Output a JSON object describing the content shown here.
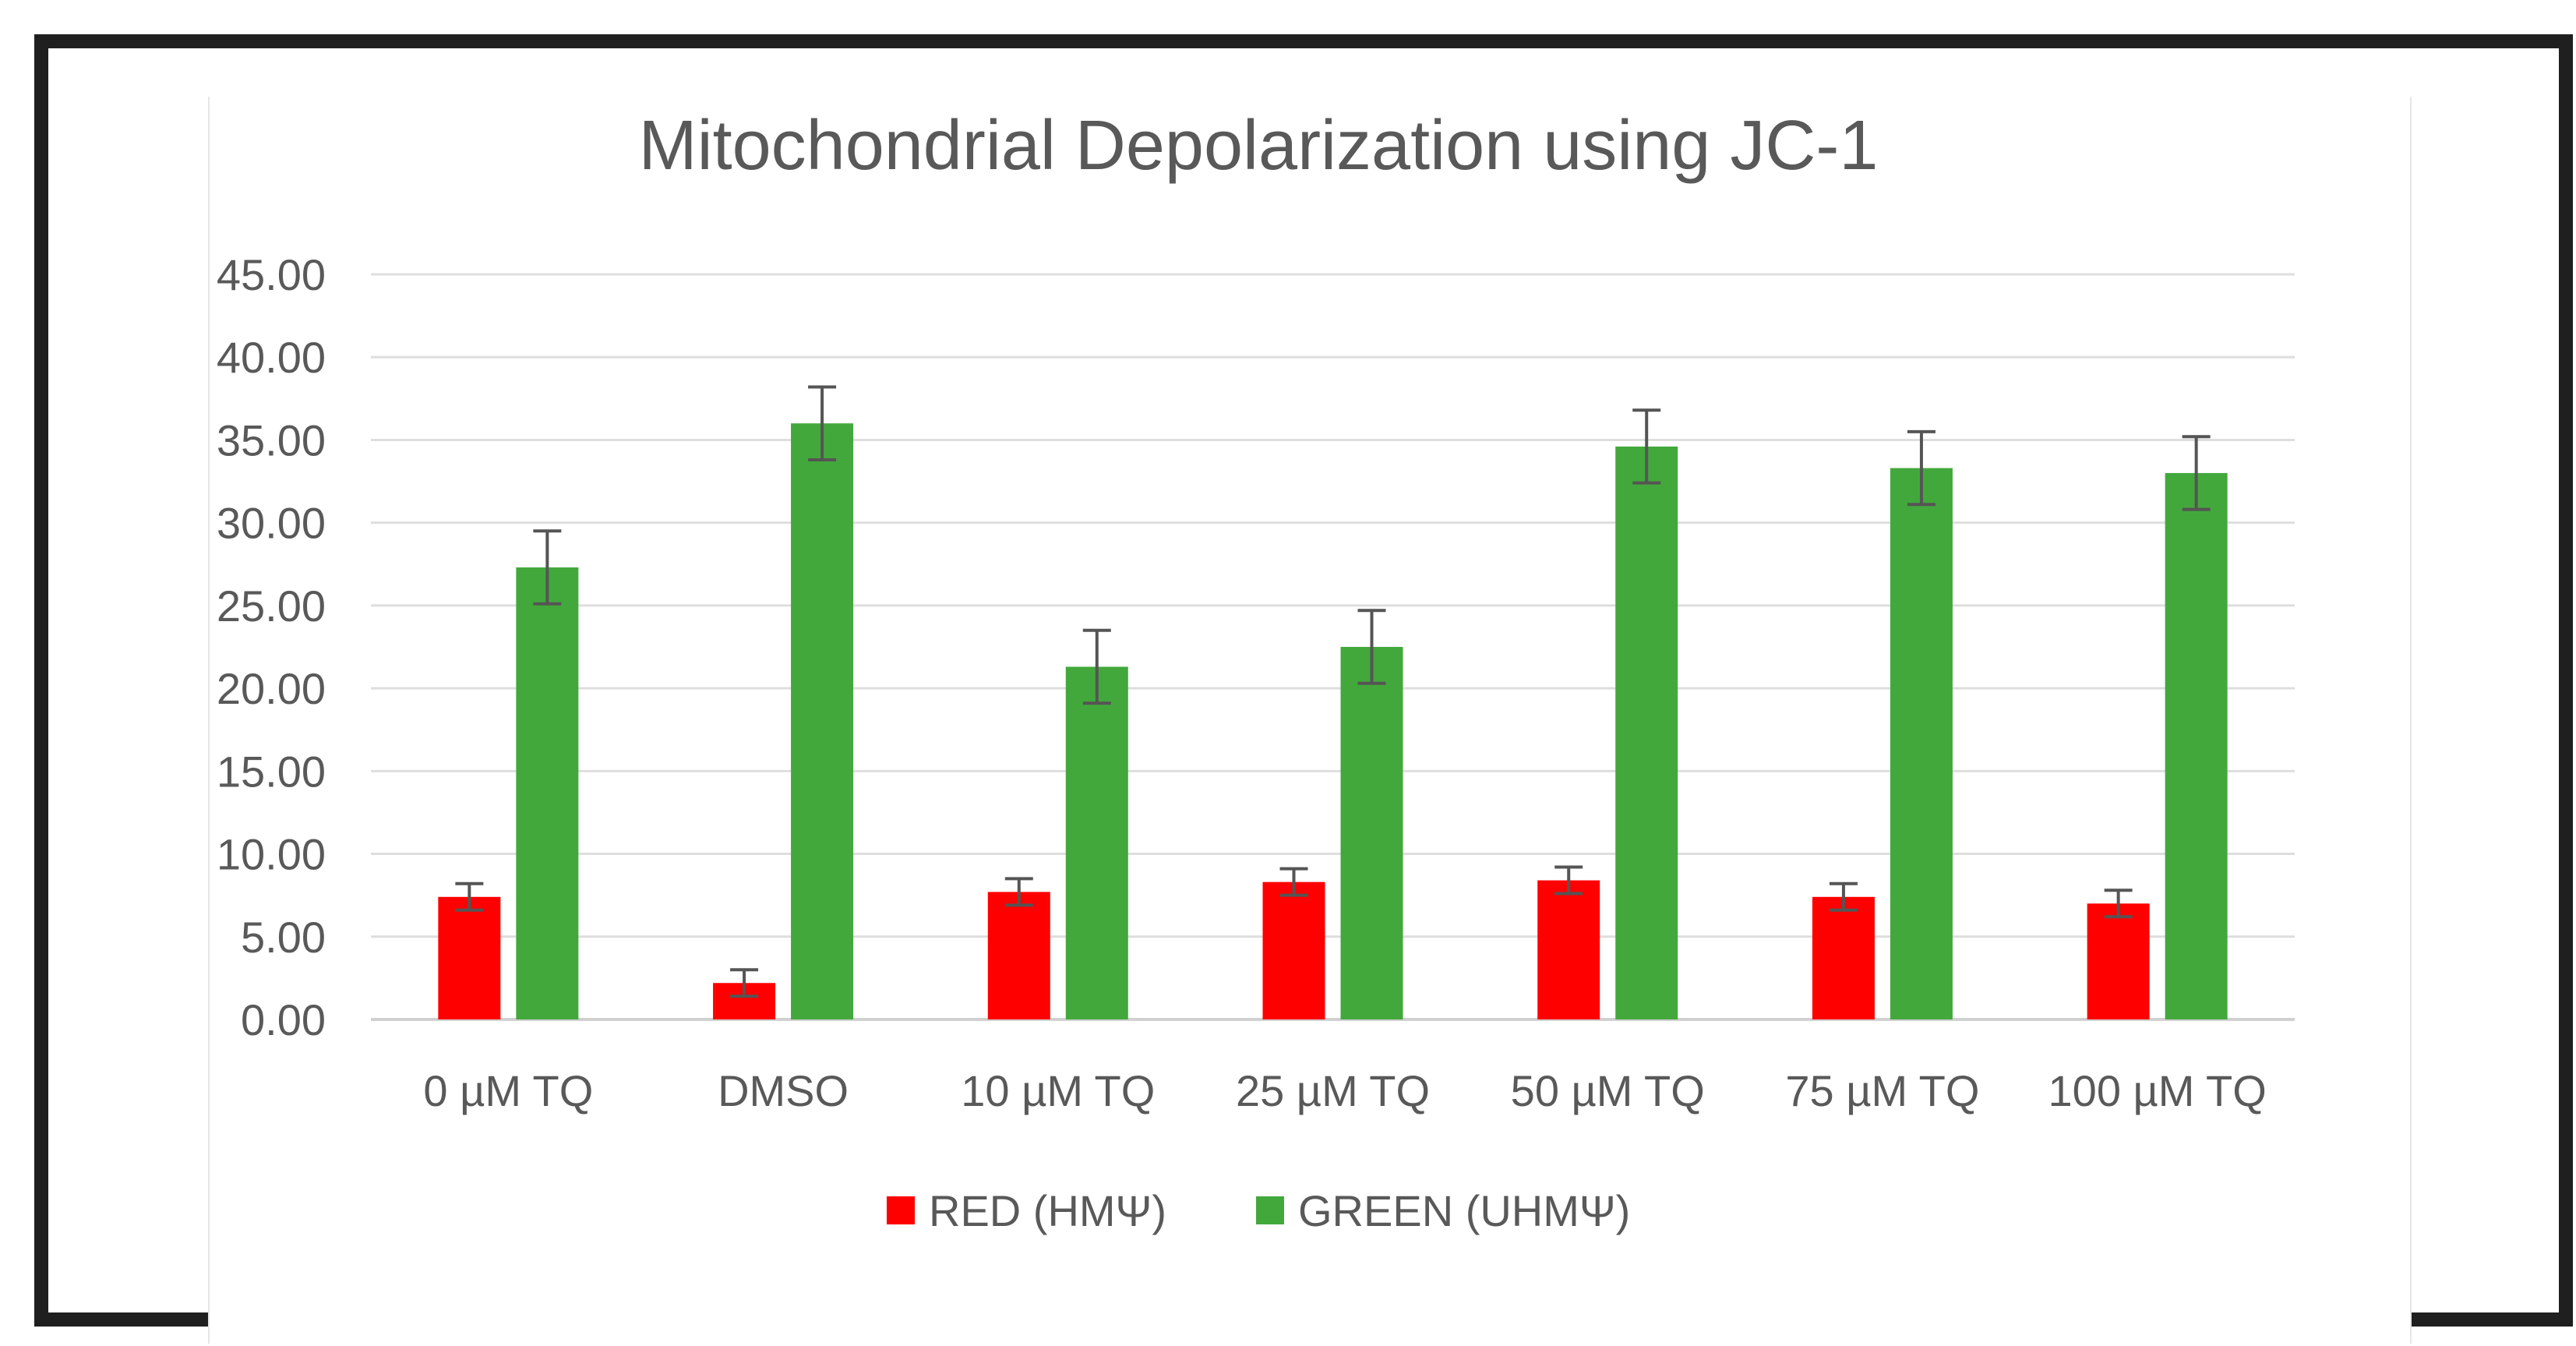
{
  "chart_data": {
    "type": "bar",
    "title": "Mitochondrial Depolarization using JC-1",
    "xlabel": "",
    "ylabel": "",
    "ylim": [
      0,
      45
    ],
    "yticks": [
      "0.00",
      "5.00",
      "10.00",
      "15.00",
      "20.00",
      "25.00",
      "30.00",
      "35.00",
      "40.00",
      "45.00"
    ],
    "grid": true,
    "legend_position": "bottom",
    "categories": [
      "0 µM TQ",
      "DMSO",
      "10 µM TQ",
      "25 µM TQ",
      "50 µM TQ",
      "75 µM TQ",
      "100 µM TQ"
    ],
    "series": [
      {
        "name": "RED (HMΨ)",
        "color": "#ff0000",
        "values": [
          7.4,
          2.2,
          7.7,
          8.3,
          8.4,
          7.4,
          7.0
        ],
        "errors": [
          0.8,
          0.8,
          0.8,
          0.8,
          0.8,
          0.8,
          0.8
        ]
      },
      {
        "name": "GREEN (UHMΨ)",
        "color": "#43a83c",
        "values": [
          27.3,
          36.0,
          21.3,
          22.5,
          34.6,
          33.3,
          33.0
        ],
        "errors": [
          2.2,
          2.2,
          2.2,
          2.2,
          2.2,
          2.2,
          2.2
        ]
      }
    ]
  }
}
